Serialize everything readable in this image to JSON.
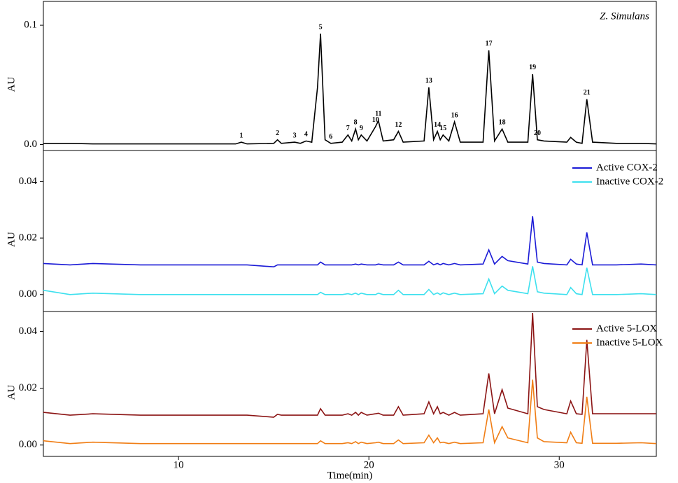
{
  "chart_data": [
    {
      "type": "line",
      "title": "Z. Simulans",
      "y_label": "AU",
      "x": [
        2.9,
        4.3,
        5.5,
        8,
        11,
        13.0,
        13.3,
        13.6,
        15.0,
        15.2,
        15.4,
        16.1,
        16.4,
        16.7,
        17.0,
        17.3,
        17.46,
        17.7,
        18.0,
        18.6,
        18.9,
        19.1,
        19.3,
        19.45,
        19.6,
        19.9,
        20.35,
        20.5,
        20.75,
        21.3,
        21.55,
        21.8,
        22.9,
        23.15,
        23.4,
        23.6,
        23.75,
        23.9,
        24.2,
        24.5,
        24.8,
        26.0,
        26.3,
        26.6,
        27.0,
        27.3,
        28.35,
        28.6,
        28.85,
        29.2,
        30.4,
        30.6,
        30.9,
        31.2,
        31.45,
        31.75,
        33,
        34.3,
        35.1
      ],
      "series": [
        {
          "color": "#000000",
          "values": [
            0.001,
            0.001,
            0.0005,
            0.0005,
            0.0005,
            0.0005,
            0.002,
            0.0005,
            0.001,
            0.004,
            0.001,
            0.002,
            0.001,
            0.003,
            0.002,
            0.048,
            0.093,
            0.004,
            0.001,
            0.002,
            0.008,
            0.003,
            0.013,
            0.004,
            0.008,
            0.003,
            0.015,
            0.02,
            0.003,
            0.004,
            0.011,
            0.002,
            0.003,
            0.048,
            0.004,
            0.011,
            0.004,
            0.008,
            0.003,
            0.019,
            0.002,
            0.002,
            0.079,
            0.003,
            0.013,
            0.002,
            0.002,
            0.059,
            0.004,
            0.003,
            0.002,
            0.006,
            0.002,
            0.001,
            0.038,
            0.002,
            0.001,
            0.001,
            0.0005
          ]
        }
      ],
      "peaks": {
        "labels": [
          "1",
          "2",
          "3",
          "4",
          "5",
          "6",
          "7",
          "8",
          "9",
          "10",
          "11",
          "12",
          "13",
          "14",
          "15",
          "16",
          "17",
          "18",
          "19",
          "20",
          "21"
        ],
        "x": [
          13.3,
          15.2,
          16.1,
          16.7,
          17.46,
          18.0,
          18.9,
          19.3,
          19.6,
          20.35,
          20.5,
          21.55,
          23.15,
          23.6,
          23.9,
          24.5,
          26.3,
          27.0,
          28.6,
          28.85,
          31.45
        ]
      },
      "xlim": [
        2.9,
        35.1
      ],
      "ylim": [
        -0.005,
        0.12
      ],
      "yticks": [
        {
          "value": 0,
          "label": "0.0"
        },
        0.1
      ]
    },
    {
      "type": "line",
      "y_label": "AU",
      "x": [
        2.9,
        4.3,
        5.5,
        8,
        11,
        13.0,
        13.3,
        13.6,
        15.0,
        15.2,
        15.4,
        16.1,
        16.4,
        16.7,
        17.0,
        17.3,
        17.46,
        17.7,
        18.0,
        18.6,
        18.9,
        19.1,
        19.3,
        19.45,
        19.6,
        19.9,
        20.35,
        20.5,
        20.75,
        21.3,
        21.55,
        21.8,
        22.9,
        23.15,
        23.4,
        23.6,
        23.75,
        23.9,
        24.2,
        24.5,
        24.8,
        26.0,
        26.3,
        26.6,
        27.0,
        27.3,
        28.35,
        28.6,
        28.85,
        29.2,
        30.4,
        30.6,
        30.9,
        31.2,
        31.45,
        31.75,
        33,
        34.3,
        35.1
      ],
      "series": [
        {
          "name": "Active COX-2",
          "color": "#1a1ad6",
          "values": [
            0.011,
            0.0105,
            0.011,
            0.0105,
            0.0105,
            0.0105,
            0.0105,
            0.0105,
            0.0098,
            0.0105,
            0.0105,
            0.0105,
            0.0105,
            0.0105,
            0.0105,
            0.0105,
            0.0115,
            0.0105,
            0.0105,
            0.0105,
            0.0105,
            0.0105,
            0.0108,
            0.0105,
            0.0108,
            0.0105,
            0.0105,
            0.0108,
            0.0105,
            0.0105,
            0.0115,
            0.0105,
            0.0105,
            0.0118,
            0.0105,
            0.011,
            0.0105,
            0.011,
            0.0105,
            0.011,
            0.0105,
            0.0108,
            0.0158,
            0.0108,
            0.0135,
            0.012,
            0.0108,
            0.0277,
            0.0115,
            0.011,
            0.0105,
            0.0125,
            0.0108,
            0.0105,
            0.022,
            0.0105,
            0.0105,
            0.0108,
            0.0105
          ]
        },
        {
          "name": "Inactive COX-2",
          "color": "#3de0ee",
          "values": [
            0.0015,
            0.0,
            0.0005,
            0.0,
            0.0,
            0.0,
            0.0,
            0.0,
            0.0,
            0.0,
            0.0,
            0.0,
            0.0,
            0.0,
            0.0,
            0.0,
            0.0008,
            0.0,
            0.0,
            0.0,
            0.0003,
            0.0,
            0.0005,
            0.0,
            0.0005,
            0.0,
            0.0,
            0.0005,
            0.0,
            0.0,
            0.0015,
            0.0,
            0.0,
            0.0018,
            0.0,
            0.0006,
            0.0,
            0.0006,
            0.0,
            0.0005,
            0.0,
            0.0003,
            0.0055,
            0.0003,
            0.003,
            0.0015,
            0.0003,
            0.01,
            0.001,
            0.0005,
            0.0,
            0.0025,
            0.0003,
            0.0,
            0.0095,
            0.0,
            0.0,
            0.0003,
            0.0
          ]
        }
      ],
      "legend": "upper right",
      "xlim": [
        2.9,
        35.1
      ],
      "ylim": [
        -0.006,
        0.051
      ],
      "yticks": [
        {
          "value": 0,
          "label": "0.00"
        },
        0.02,
        0.04
      ]
    },
    {
      "type": "line",
      "y_label": "AU",
      "x_label": "Time(min)",
      "x": [
        2.9,
        4.3,
        5.5,
        8,
        11,
        13.0,
        13.3,
        13.6,
        15.0,
        15.2,
        15.4,
        16.1,
        16.4,
        16.7,
        17.0,
        17.3,
        17.46,
        17.7,
        18.0,
        18.6,
        18.9,
        19.1,
        19.3,
        19.45,
        19.6,
        19.9,
        20.35,
        20.5,
        20.75,
        21.3,
        21.55,
        21.8,
        22.9,
        23.15,
        23.4,
        23.6,
        23.75,
        23.9,
        24.2,
        24.5,
        24.8,
        26.0,
        26.3,
        26.6,
        27.0,
        27.3,
        28.35,
        28.6,
        28.85,
        29.2,
        30.4,
        30.6,
        30.9,
        31.2,
        31.45,
        31.75,
        33,
        34.3,
        35.1
      ],
      "series": [
        {
          "name": "Active 5-LOX",
          "color": "#8b1414",
          "values": [
            0.0115,
            0.0105,
            0.011,
            0.0105,
            0.0105,
            0.0105,
            0.0105,
            0.0105,
            0.0098,
            0.0108,
            0.0105,
            0.0105,
            0.0105,
            0.0105,
            0.0105,
            0.0105,
            0.0128,
            0.0105,
            0.0105,
            0.0105,
            0.011,
            0.0105,
            0.0115,
            0.0105,
            0.0115,
            0.0105,
            0.011,
            0.0112,
            0.0105,
            0.0105,
            0.0135,
            0.0105,
            0.011,
            0.0152,
            0.011,
            0.0135,
            0.011,
            0.0115,
            0.0105,
            0.0115,
            0.0105,
            0.011,
            0.0252,
            0.011,
            0.0195,
            0.013,
            0.011,
            0.0465,
            0.0135,
            0.0125,
            0.011,
            0.0155,
            0.011,
            0.0108,
            0.037,
            0.011,
            0.011,
            0.011,
            0.011
          ]
        },
        {
          "name": "Inactive 5-LOX",
          "color": "#f07d14",
          "values": [
            0.0015,
            0.0005,
            0.001,
            0.0005,
            0.0005,
            0.0005,
            0.0005,
            0.0005,
            0.0005,
            0.0005,
            0.0005,
            0.0005,
            0.0005,
            0.0005,
            0.0005,
            0.0005,
            0.0015,
            0.0005,
            0.0005,
            0.0005,
            0.0008,
            0.0005,
            0.0012,
            0.0005,
            0.001,
            0.0005,
            0.0008,
            0.001,
            0.0005,
            0.0005,
            0.0018,
            0.0005,
            0.0008,
            0.0035,
            0.0008,
            0.0025,
            0.0008,
            0.001,
            0.0005,
            0.001,
            0.0005,
            0.0008,
            0.0125,
            0.0008,
            0.0065,
            0.0025,
            0.0008,
            0.023,
            0.0025,
            0.0012,
            0.0008,
            0.0045,
            0.0008,
            0.0006,
            0.017,
            0.0006,
            0.0006,
            0.0008,
            0.0005
          ]
        }
      ],
      "legend": "upper right",
      "xlim": [
        2.9,
        35.1
      ],
      "ylim": [
        -0.004,
        0.047
      ],
      "yticks": [
        {
          "value": 0,
          "label": "0.00"
        },
        0.02,
        0.04
      ],
      "xticks": [
        10,
        20,
        30
      ]
    }
  ]
}
